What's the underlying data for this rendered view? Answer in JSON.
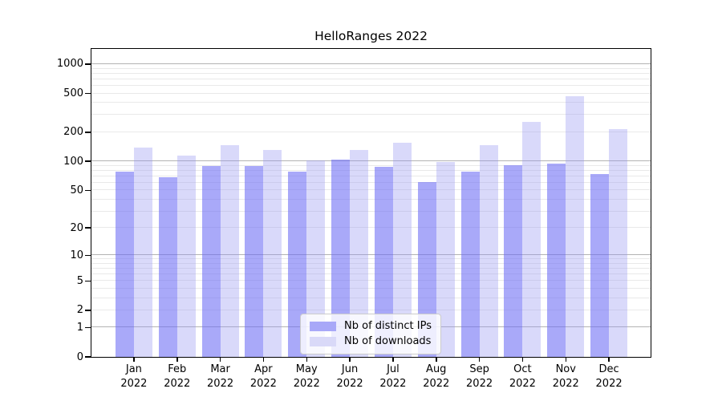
{
  "chart_data": {
    "type": "bar",
    "title": "HelloRanges 2022",
    "year": "2022",
    "categories": [
      "Jan",
      "Feb",
      "Mar",
      "Apr",
      "May",
      "Jun",
      "Jul",
      "Aug",
      "Sep",
      "Oct",
      "Nov",
      "Dec"
    ],
    "series": [
      {
        "name": "Nb of distinct IPs",
        "color": "#a8a8f8",
        "fill": "rgba(106,106,245,0.58)",
        "values": [
          78,
          68,
          90,
          90,
          79,
          104,
          87,
          61,
          79,
          91,
          95,
          74
        ]
      },
      {
        "name": "Nb of downloads",
        "color": "#d9d9f8",
        "fill": "rgba(150,150,240,0.36)",
        "values": [
          138,
          114,
          146,
          130,
          102,
          130,
          155,
          98,
          146,
          255,
          468,
          215
        ]
      }
    ],
    "yscale": {
      "type": "log1p",
      "top": 1433,
      "bottom": 0
    },
    "yticks": [
      0,
      1,
      2,
      5,
      10,
      20,
      50,
      100,
      200,
      500,
      1000
    ],
    "major_gridlines": [
      1,
      10,
      100,
      1000
    ],
    "minor_gridlines": [
      2,
      3,
      4,
      5,
      6,
      7,
      8,
      9,
      20,
      30,
      40,
      50,
      60,
      70,
      80,
      90,
      200,
      300,
      400,
      500,
      600,
      700,
      800,
      900
    ],
    "legend": {
      "position": "lower center"
    },
    "colors": {
      "major_grid": "#b3b3b3",
      "minor_grid": "#e9e9e9",
      "spine": "#000000",
      "text": "#000000",
      "legend_border": "#cccccc",
      "legend_bg": "rgba(255,255,255,0.8)"
    }
  }
}
